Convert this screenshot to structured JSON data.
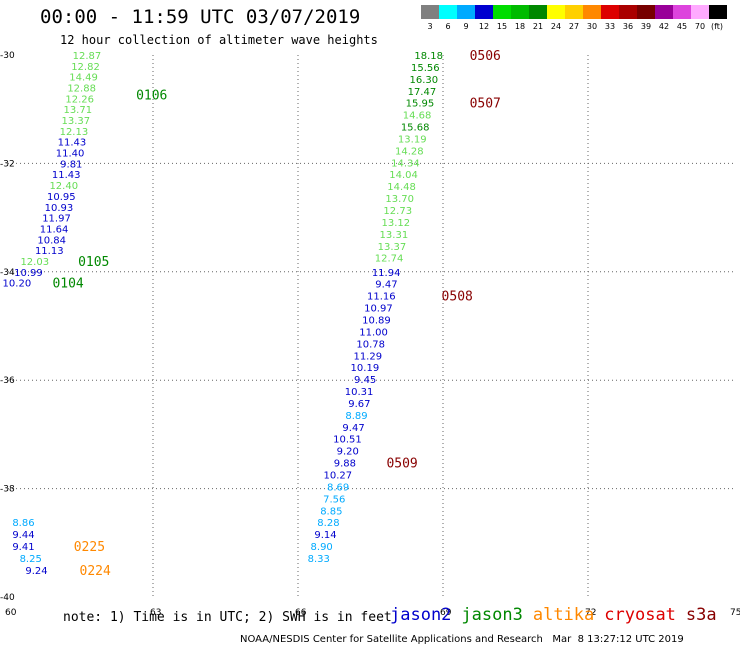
{
  "header": {
    "title": "00:00 - 11:59 UTC 03/07/2019",
    "subtitle": "12 hour collection of altimeter wave heights"
  },
  "legend": {
    "unit": "(ft)",
    "items": [
      {
        "label": "3",
        "color": "#808080"
      },
      {
        "label": "6",
        "color": "#00ffff"
      },
      {
        "label": "9",
        "color": "#00aaff"
      },
      {
        "label": "12",
        "color": "#0000d0"
      },
      {
        "label": "15",
        "color": "#00dd00"
      },
      {
        "label": "18",
        "color": "#00bb00"
      },
      {
        "label": "21",
        "color": "#008800"
      },
      {
        "label": "24",
        "color": "#ffff00"
      },
      {
        "label": "27",
        "color": "#ffd000"
      },
      {
        "label": "30",
        "color": "#ff8800"
      },
      {
        "label": "33",
        "color": "#dd0000"
      },
      {
        "label": "36",
        "color": "#aa0000"
      },
      {
        "label": "39",
        "color": "#770000"
      },
      {
        "label": "42",
        "color": "#990099"
      },
      {
        "label": "45",
        "color": "#dd44dd"
      },
      {
        "label": "70",
        "color": "#ffaaff"
      },
      {
        "label": "",
        "color": "#000000"
      }
    ]
  },
  "map": {
    "lon_range": [
      60,
      75
    ],
    "lat_range": [
      -40,
      -30
    ],
    "lon_ticks": [
      "60",
      "63",
      "66",
      "69",
      "72",
      "75"
    ],
    "lat_ticks": [
      "-30",
      "-32",
      "-34",
      "-36",
      "-38",
      "-40"
    ],
    "grid": "dotted"
  },
  "tracks": [
    {
      "id": "0106",
      "color": "#008800",
      "pass": {
        "text": "0106",
        "lon": 62.65,
        "lat": -30.73
      },
      "points": [
        {
          "lon": 61.93,
          "lat": -30.0,
          "v": "12.87",
          "c": "#66dd55"
        },
        {
          "lon": 61.9,
          "lat": -30.2,
          "v": "12.82",
          "c": "#66dd55"
        },
        {
          "lon": 61.86,
          "lat": -30.4,
          "v": "14.49",
          "c": "#66dd55"
        },
        {
          "lon": 61.82,
          "lat": -30.6,
          "v": "12.88",
          "c": "#66dd55"
        },
        {
          "lon": 61.78,
          "lat": -30.8,
          "v": "12.26",
          "c": "#66dd55"
        },
        {
          "lon": 61.74,
          "lat": -31.0,
          "v": "13.71",
          "c": "#66dd55"
        },
        {
          "lon": 61.7,
          "lat": -31.2,
          "v": "13.37",
          "c": "#66dd55"
        },
        {
          "lon": 61.66,
          "lat": -31.4,
          "v": "12.13",
          "c": "#66dd55"
        },
        {
          "lon": 61.62,
          "lat": -31.6,
          "v": "11.43",
          "c": "#0000cc"
        },
        {
          "lon": 61.58,
          "lat": -31.8,
          "v": "11.40",
          "c": "#0000cc"
        },
        {
          "lon": 61.54,
          "lat": -32.0,
          "v": "9.81",
          "c": "#0000cc"
        },
        {
          "lon": 61.5,
          "lat": -32.2,
          "v": "11.43",
          "c": "#0000cc"
        },
        {
          "lon": 61.45,
          "lat": -32.4,
          "v": "12.40",
          "c": "#66dd55"
        },
        {
          "lon": 61.4,
          "lat": -32.6,
          "v": "10.95",
          "c": "#0000cc"
        },
        {
          "lon": 61.35,
          "lat": -32.8,
          "v": "10.93",
          "c": "#0000cc"
        },
        {
          "lon": 61.3,
          "lat": -33.0,
          "v": "11.97",
          "c": "#0000cc"
        },
        {
          "lon": 61.25,
          "lat": -33.2,
          "v": "11.64",
          "c": "#0000cc"
        },
        {
          "lon": 61.2,
          "lat": -33.4,
          "v": "10.84",
          "c": "#0000cc"
        },
        {
          "lon": 61.15,
          "lat": -33.6,
          "v": "11.13",
          "c": "#0000cc"
        }
      ]
    },
    {
      "id": "0105",
      "color": "#008800",
      "pass": {
        "text": "0105",
        "lon": 61.45,
        "lat": -33.8
      },
      "points": [
        {
          "lon": 60.85,
          "lat": -33.8,
          "v": "12.03",
          "c": "#66dd55"
        },
        {
          "lon": 60.72,
          "lat": -34.0,
          "v": "10.99",
          "c": "#0000cc"
        }
      ]
    },
    {
      "id": "0104",
      "color": "#008800",
      "pass": {
        "text": "0104",
        "lon": 60.92,
        "lat": -34.2
      },
      "points": [
        {
          "lon": 60.48,
          "lat": -34.2,
          "v": "10.20",
          "c": "#0000cc"
        }
      ]
    },
    {
      "id": "0506",
      "color": "#880000",
      "pass": {
        "text": "0506",
        "lon": 69.55,
        "lat": -30.0
      },
      "points": [
        {
          "lon": 69.0,
          "lat": -30.0,
          "v": "18.18",
          "c": "#008800"
        },
        {
          "lon": 68.93,
          "lat": -30.22,
          "v": "15.56",
          "c": "#008800"
        },
        {
          "lon": 68.9,
          "lat": -30.44,
          "v": "16.30",
          "c": "#008800"
        },
        {
          "lon": 68.86,
          "lat": -30.66,
          "v": "17.47",
          "c": "#008800"
        },
        {
          "lon": 68.82,
          "lat": -30.88,
          "v": "15.95",
          "c": "#008800"
        }
      ]
    },
    {
      "id": "0507",
      "color": "#880000",
      "pass": {
        "text": "0507",
        "lon": 69.55,
        "lat": -30.88
      },
      "points": [
        {
          "lon": 68.76,
          "lat": -31.1,
          "v": "14.68",
          "c": "#66dd55"
        },
        {
          "lon": 68.72,
          "lat": -31.32,
          "v": "15.68",
          "c": "#008800"
        },
        {
          "lon": 68.66,
          "lat": -31.54,
          "v": "13.19",
          "c": "#66dd55"
        },
        {
          "lon": 68.6,
          "lat": -31.76,
          "v": "14.28",
          "c": "#66dd55"
        },
        {
          "lon": 68.52,
          "lat": -31.98,
          "v": "14.34",
          "c": "#66dd55"
        },
        {
          "lon": 68.48,
          "lat": -32.2,
          "v": "14.04",
          "c": "#66dd55"
        },
        {
          "lon": 68.44,
          "lat": -32.42,
          "v": "14.48",
          "c": "#66dd55"
        },
        {
          "lon": 68.4,
          "lat": -32.64,
          "v": "13.70",
          "c": "#66dd55"
        },
        {
          "lon": 68.36,
          "lat": -32.86,
          "v": "12.73",
          "c": "#66dd55"
        },
        {
          "lon": 68.32,
          "lat": -33.08,
          "v": "13.12",
          "c": "#66dd55"
        },
        {
          "lon": 68.28,
          "lat": -33.3,
          "v": "13.31",
          "c": "#66dd55"
        },
        {
          "lon": 68.24,
          "lat": -33.52,
          "v": "13.37",
          "c": "#66dd55"
        },
        {
          "lon": 68.18,
          "lat": -33.74,
          "v": "12.74",
          "c": "#66dd55"
        },
        {
          "lon": 68.12,
          "lat": -34.0,
          "v": "11.94",
          "c": "#0000cc"
        }
      ]
    },
    {
      "id": "0508",
      "color": "#880000",
      "pass": {
        "text": "0508",
        "lon": 68.97,
        "lat": -34.44
      },
      "points": [
        {
          "lon": 68.06,
          "lat": -34.22,
          "v": "9.47",
          "c": "#0000cc"
        },
        {
          "lon": 68.02,
          "lat": -34.44,
          "v": "11.16",
          "c": "#0000cc"
        },
        {
          "lon": 67.96,
          "lat": -34.66,
          "v": "10.97",
          "c": "#0000cc"
        },
        {
          "lon": 67.92,
          "lat": -34.88,
          "v": "10.89",
          "c": "#0000cc"
        },
        {
          "lon": 67.86,
          "lat": -35.1,
          "v": "11.00",
          "c": "#0000cc"
        },
        {
          "lon": 67.8,
          "lat": -35.32,
          "v": "10.78",
          "c": "#0000cc"
        },
        {
          "lon": 67.74,
          "lat": -35.54,
          "v": "11.29",
          "c": "#0000cc"
        },
        {
          "lon": 67.68,
          "lat": -35.76,
          "v": "10.19",
          "c": "#0000cc"
        },
        {
          "lon": 67.62,
          "lat": -35.98,
          "v": "9.45",
          "c": "#0000cc"
        },
        {
          "lon": 67.56,
          "lat": -36.2,
          "v": "10.31",
          "c": "#0000cc"
        },
        {
          "lon": 67.5,
          "lat": -36.42,
          "v": "9.67",
          "c": "#0000cc"
        },
        {
          "lon": 67.44,
          "lat": -36.64,
          "v": "8.89",
          "c": "#00aaff"
        },
        {
          "lon": 67.38,
          "lat": -36.86,
          "v": "9.47",
          "c": "#0000cc"
        },
        {
          "lon": 67.32,
          "lat": -37.08,
          "v": "10.51",
          "c": "#0000cc"
        },
        {
          "lon": 67.26,
          "lat": -37.3,
          "v": "9.20",
          "c": "#0000cc"
        },
        {
          "lon": 67.2,
          "lat": -37.52,
          "v": "9.88",
          "c": "#0000cc"
        }
      ]
    },
    {
      "id": "0509",
      "color": "#880000",
      "pass": {
        "text": "0509",
        "lon": 67.83,
        "lat": -37.52
      },
      "points": [
        {
          "lon": 67.12,
          "lat": -37.74,
          "v": "10.27",
          "c": "#0000cc"
        },
        {
          "lon": 67.06,
          "lat": -37.96,
          "v": "8.69",
          "c": "#00aaff"
        },
        {
          "lon": 66.98,
          "lat": -38.18,
          "v": "7.56",
          "c": "#00aaff"
        },
        {
          "lon": 66.92,
          "lat": -38.4,
          "v": "8.85",
          "c": "#00aaff"
        },
        {
          "lon": 66.86,
          "lat": -38.62,
          "v": "8.28",
          "c": "#00aaff"
        },
        {
          "lon": 66.8,
          "lat": -38.84,
          "v": "9.14",
          "c": "#0000cc"
        },
        {
          "lon": 66.72,
          "lat": -39.06,
          "v": "8.90",
          "c": "#00aaff"
        },
        {
          "lon": 66.66,
          "lat": -39.28,
          "v": "8.33",
          "c": "#00aaff"
        }
      ]
    },
    {
      "id": "0225",
      "color": "#ff8800",
      "pass": {
        "text": "0225",
        "lon": 61.36,
        "lat": -39.06
      },
      "points": [
        {
          "lon": 60.55,
          "lat": -38.62,
          "v": "8.86",
          "c": "#00aaff"
        },
        {
          "lon": 60.55,
          "lat": -38.84,
          "v": "9.44",
          "c": "#0000cc"
        },
        {
          "lon": 60.55,
          "lat": -39.06,
          "v": "9.41",
          "c": "#0000cc"
        },
        {
          "lon": 60.7,
          "lat": -39.28,
          "v": "8.25",
          "c": "#00aaff"
        }
      ]
    },
    {
      "id": "0224",
      "color": "#ff8800",
      "pass": {
        "text": "0224",
        "lon": 61.48,
        "lat": -39.5
      },
      "points": [
        {
          "lon": 60.82,
          "lat": -39.5,
          "v": "9.24",
          "c": "#0000cc"
        }
      ]
    }
  ],
  "footer": {
    "note": "note: 1) Time is in UTC; 2) SWH is in feet",
    "satellites": [
      {
        "name": "jason2",
        "color": "#0000cc"
      },
      {
        "name": "jason3",
        "color": "#008800"
      },
      {
        "name": "altika",
        "color": "#ff8800"
      },
      {
        "name": "cryosat",
        "color": "#dd0000"
      },
      {
        "name": "s3a",
        "color": "#880000"
      }
    ],
    "credit": "NOAA/NESDIS Center for Satellite Applications and Research   Mar  8 13:27:12 UTC 2019"
  }
}
